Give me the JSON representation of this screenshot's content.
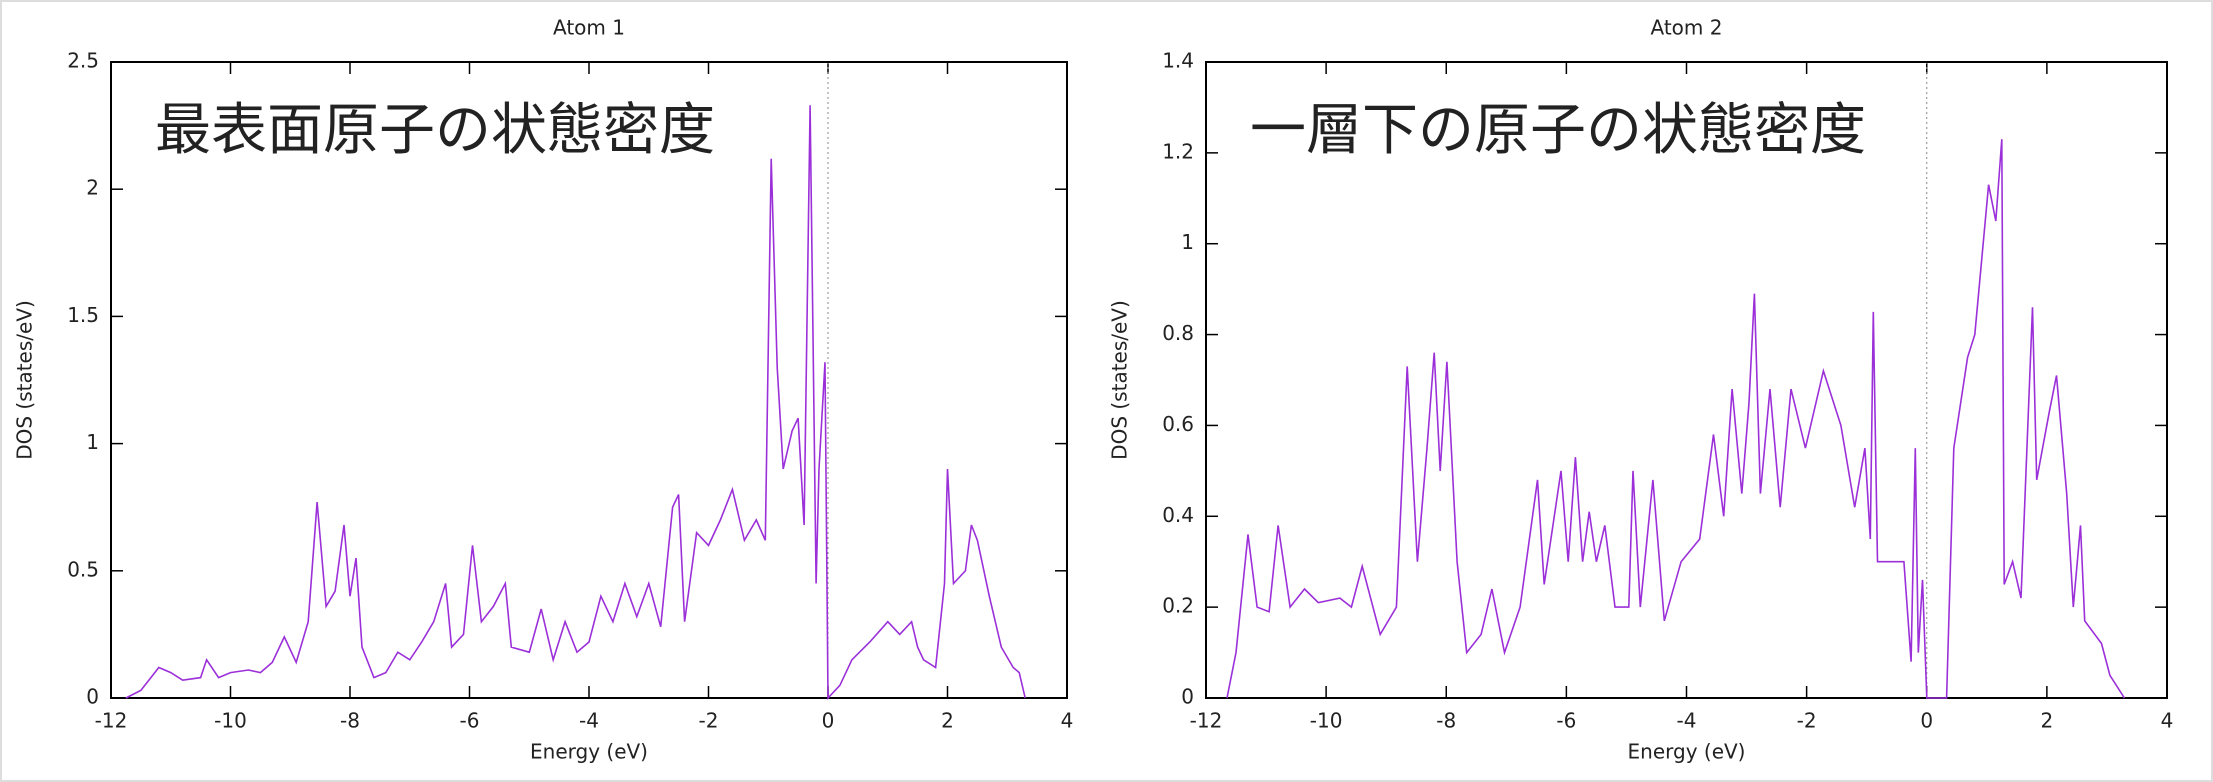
{
  "chart_data": [
    {
      "type": "line",
      "title": "Atom 1",
      "annotation": "最表面原子の状態密度",
      "xlabel": "Energy (eV)",
      "ylabel": "DOS (states/eV)",
      "color": "#9b30d9",
      "xlim": [
        -12,
        4
      ],
      "ylim": [
        0,
        2.5
      ],
      "xticks": [
        -12,
        -10,
        -8,
        -6,
        -4,
        -2,
        0,
        2,
        4
      ],
      "yticks": [
        0,
        0.5,
        1,
        1.5,
        2,
        2.5
      ],
      "vline": 0,
      "x": [
        -11.75,
        -11.5,
        -11.2,
        -11.0,
        -10.8,
        -10.5,
        -10.4,
        -10.2,
        -10.0,
        -9.7,
        -9.5,
        -9.3,
        -9.1,
        -8.9,
        -8.7,
        -8.55,
        -8.4,
        -8.25,
        -8.1,
        -8.0,
        -7.9,
        -7.8,
        -7.6,
        -7.4,
        -7.2,
        -7.0,
        -6.8,
        -6.6,
        -6.4,
        -6.3,
        -6.1,
        -5.95,
        -5.8,
        -5.6,
        -5.4,
        -5.3,
        -5.0,
        -4.8,
        -4.6,
        -4.4,
        -4.2,
        -4.0,
        -3.8,
        -3.6,
        -3.4,
        -3.2,
        -3.0,
        -2.8,
        -2.6,
        -2.5,
        -2.4,
        -2.2,
        -2.0,
        -1.8,
        -1.6,
        -1.4,
        -1.2,
        -1.05,
        -0.95,
        -0.85,
        -0.75,
        -0.6,
        -0.5,
        -0.4,
        -0.3,
        -0.2,
        -0.15,
        -0.05,
        0.0,
        0.2,
        0.4,
        0.7,
        1.0,
        1.2,
        1.4,
        1.5,
        1.6,
        1.8,
        1.95,
        2.0,
        2.1,
        2.3,
        2.4,
        2.5,
        2.7,
        2.9,
        3.1,
        3.2,
        3.3
      ],
      "values": [
        0,
        0.03,
        0.12,
        0.1,
        0.07,
        0.08,
        0.15,
        0.08,
        0.1,
        0.11,
        0.1,
        0.14,
        0.24,
        0.14,
        0.3,
        0.77,
        0.36,
        0.42,
        0.68,
        0.4,
        0.55,
        0.2,
        0.08,
        0.1,
        0.18,
        0.15,
        0.22,
        0.3,
        0.45,
        0.2,
        0.25,
        0.6,
        0.3,
        0.36,
        0.45,
        0.2,
        0.18,
        0.35,
        0.15,
        0.3,
        0.18,
        0.22,
        0.4,
        0.3,
        0.45,
        0.32,
        0.45,
        0.28,
        0.75,
        0.8,
        0.3,
        0.65,
        0.6,
        0.7,
        0.82,
        0.62,
        0.7,
        0.62,
        2.12,
        1.3,
        0.9,
        1.05,
        1.1,
        0.68,
        2.33,
        0.45,
        0.9,
        1.32,
        0,
        0.05,
        0.15,
        0.22,
        0.3,
        0.25,
        0.3,
        0.2,
        0.15,
        0.12,
        0.45,
        0.9,
        0.45,
        0.5,
        0.68,
        0.62,
        0.4,
        0.2,
        0.12,
        0.1,
        0
      ]
    },
    {
      "type": "line",
      "title": "Atom 2",
      "annotation": "一層下の原子の状態密度",
      "xlabel": "Energy (eV)",
      "ylabel": "DOS (states/eV)",
      "color": "#9b30d9",
      "xlim": [
        -12,
        4
      ],
      "ylim": [
        0,
        1.4
      ],
      "xticks": [
        -12,
        -10,
        -8,
        -6,
        -4,
        -2,
        0,
        2,
        4
      ],
      "yticks": [
        0,
        0.2,
        0.4,
        0.6,
        0.8,
        1,
        1.2,
        1.4
      ],
      "vline": 0,
      "x": [
        -11.65,
        -11.5,
        -11.3,
        -11.15,
        -10.95,
        -10.8,
        -10.6,
        -10.36,
        -10.13,
        -9.77,
        -9.58,
        -9.4,
        -9.1,
        -8.83,
        -8.65,
        -8.48,
        -8.32,
        -8.2,
        -8.1,
        -7.99,
        -7.82,
        -7.66,
        -7.42,
        -7.24,
        -7.03,
        -6.77,
        -6.48,
        -6.37,
        -6.09,
        -5.97,
        -5.85,
        -5.73,
        -5.62,
        -5.5,
        -5.36,
        -5.19,
        -4.96,
        -4.89,
        -4.77,
        -4.56,
        -4.37,
        -4.09,
        -3.78,
        -3.55,
        -3.38,
        -3.24,
        -3.08,
        -2.96,
        -2.87,
        -2.77,
        -2.61,
        -2.44,
        -2.26,
        -2.02,
        -1.72,
        -1.43,
        -1.2,
        -1.03,
        -0.94,
        -0.89,
        -0.82,
        -0.38,
        -0.26,
        -0.19,
        -0.14,
        -0.07,
        0,
        0.33,
        0.45,
        0.68,
        0.8,
        1.03,
        1.15,
        1.25,
        1.29,
        1.43,
        1.57,
        1.76,
        1.83,
        2.04,
        2.16,
        2.33,
        2.44,
        2.56,
        2.63,
        2.91,
        3.05,
        3.29
      ],
      "values": [
        0,
        0.1,
        0.36,
        0.2,
        0.19,
        0.38,
        0.2,
        0.24,
        0.21,
        0.22,
        0.2,
        0.29,
        0.14,
        0.2,
        0.73,
        0.3,
        0.55,
        0.76,
        0.5,
        0.74,
        0.3,
        0.1,
        0.14,
        0.24,
        0.1,
        0.2,
        0.48,
        0.25,
        0.5,
        0.3,
        0.53,
        0.3,
        0.41,
        0.3,
        0.38,
        0.2,
        0.2,
        0.5,
        0.2,
        0.48,
        0.17,
        0.3,
        0.35,
        0.58,
        0.4,
        0.68,
        0.45,
        0.65,
        0.89,
        0.45,
        0.68,
        0.42,
        0.68,
        0.55,
        0.72,
        0.6,
        0.42,
        0.55,
        0.35,
        0.85,
        0.3,
        0.3,
        0.08,
        0.55,
        0.1,
        0.26,
        0,
        0,
        0.55,
        0.75,
        0.8,
        1.13,
        1.05,
        1.23,
        0.25,
        0.3,
        0.22,
        0.86,
        0.48,
        0.63,
        0.71,
        0.45,
        0.2,
        0.38,
        0.17,
        0.12,
        0.05,
        0
      ]
    }
  ]
}
